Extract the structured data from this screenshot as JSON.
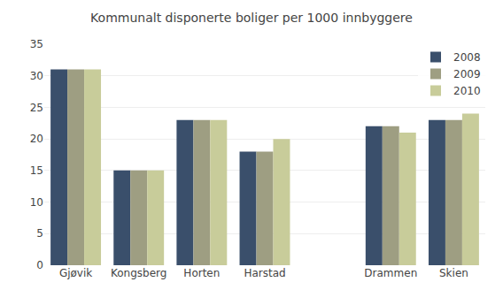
{
  "chart_data": {
    "type": "bar",
    "title": "Kommunalt disponerte boliger per 1000 innbyggere",
    "categories": [
      "Gjøvik",
      "Kongsberg",
      "Horten",
      "Harstad",
      null,
      "Drammen",
      "Skien"
    ],
    "series": [
      {
        "name": "2008",
        "color": "#3A4F6B",
        "values": [
          31,
          15,
          23,
          18,
          null,
          22,
          23
        ]
      },
      {
        "name": "2009",
        "color": "#9E9E82",
        "values": [
          31,
          15,
          23,
          18,
          null,
          22,
          23
        ]
      },
      {
        "name": "2010",
        "color": "#C8CC9A",
        "values": [
          31,
          15,
          23,
          20,
          null,
          21,
          24
        ]
      }
    ],
    "ylim": [
      0,
      35
    ],
    "yticks": [
      0,
      5,
      10,
      15,
      20,
      25,
      30,
      35
    ],
    "grid": true,
    "legend": "upper right"
  }
}
